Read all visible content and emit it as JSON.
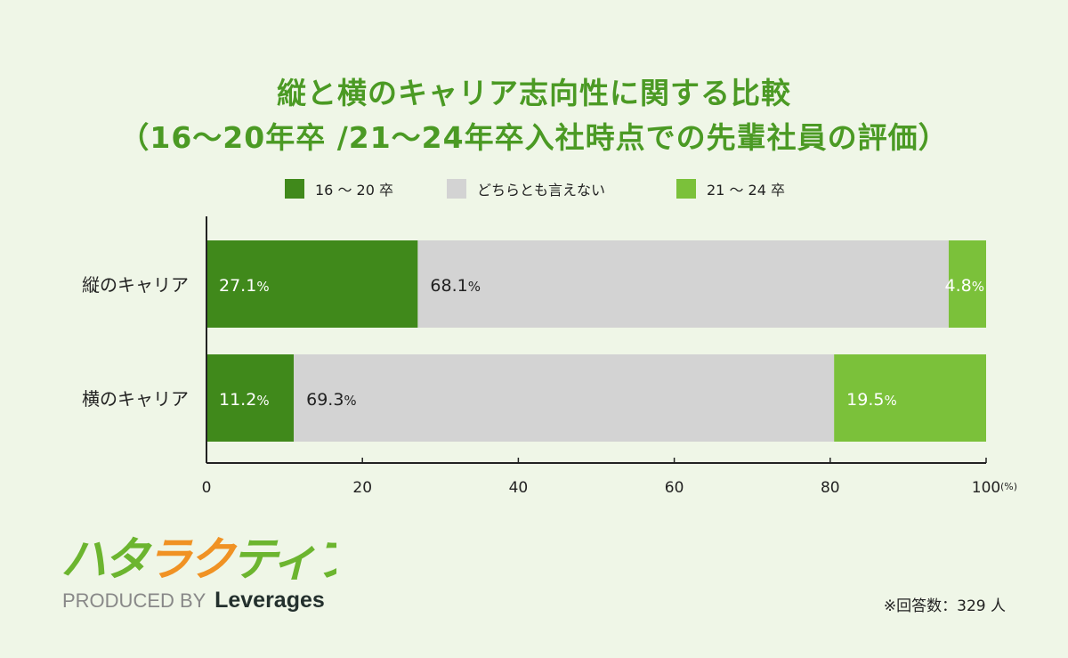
{
  "title_line1": "縦と横のキャリア志向性に関する比較",
  "title_line2": "（16～20年卒 /21～24年卒入社時点での先輩社員の評価）",
  "chart_data": {
    "type": "bar",
    "orientation": "horizontal",
    "stacked": true,
    "categories": [
      "縦のキャリア",
      "横のキャリア"
    ],
    "series": [
      {
        "name": "16 ～ 20 卒",
        "values": [
          27.1,
          11.2
        ],
        "color": "#40891b"
      },
      {
        "name": "どちらとも言えない",
        "values": [
          68.1,
          69.3
        ],
        "color": "#d3d3d3"
      },
      {
        "name": "21 ～ 24 卒",
        "values": [
          4.8,
          19.5
        ],
        "color": "#7bc13a"
      }
    ],
    "data_label_unit": "%",
    "xlim": [
      0,
      100
    ],
    "xticks": [
      "0",
      "20",
      "40",
      "60",
      "80",
      "100"
    ],
    "xunit": "(%)",
    "legend_position": "top",
    "grid": false
  },
  "footnote": "※回答数：329 人",
  "logo": {
    "text": "ハタラクティブ",
    "produced_by": "PRODUCED BY",
    "brand": "Leverages"
  }
}
